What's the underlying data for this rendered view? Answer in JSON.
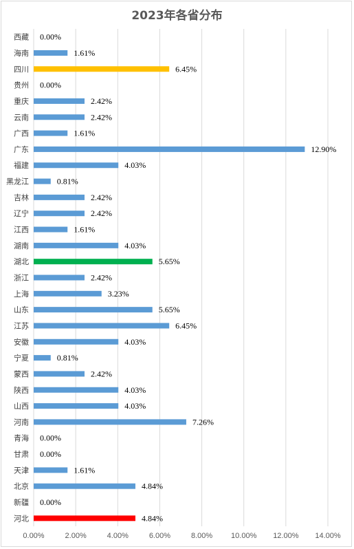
{
  "chart_data": {
    "type": "bar",
    "orientation": "horizontal",
    "title": "2023年各省分布",
    "categories": [
      "西藏",
      "海南",
      "四川",
      "贵州",
      "重庆",
      "云南",
      "广西",
      "广东",
      "福建",
      "黑龙江",
      "吉林",
      "辽宁",
      "江西",
      "湖南",
      "湖北",
      "浙江",
      "上海",
      "山东",
      "江苏",
      "安徽",
      "宁夏",
      "蒙西",
      "陕西",
      "山西",
      "河南",
      "青海",
      "甘肃",
      "天津",
      "北京",
      "新疆",
      "河北"
    ],
    "values": [
      0.0,
      1.61,
      6.45,
      0.0,
      2.42,
      2.42,
      1.61,
      12.9,
      4.03,
      0.81,
      2.42,
      2.42,
      1.61,
      4.03,
      5.65,
      2.42,
      3.23,
      5.65,
      6.45,
      4.03,
      0.81,
      2.42,
      4.03,
      4.03,
      7.26,
      0.0,
      0.0,
      1.61,
      4.84,
      0.0,
      4.84
    ],
    "value_labels": [
      "0.00%",
      "1.61%",
      "6.45%",
      "0.00%",
      "2.42%",
      "2.42%",
      "1.61%",
      "12.90%",
      "4.03%",
      "0.81%",
      "2.42%",
      "2.42%",
      "1.61%",
      "4.03%",
      "5.65%",
      "2.42%",
      "3.23%",
      "5.65%",
      "6.45%",
      "4.03%",
      "0.81%",
      "2.42%",
      "4.03%",
      "4.03%",
      "7.26%",
      "0.00%",
      "0.00%",
      "1.61%",
      "4.84%",
      "0.00%",
      "4.84%"
    ],
    "highlight_colors": {
      "四川": "#ffc000",
      "湖北": "#00b050",
      "河北": "#ff0000"
    },
    "default_color": "#5b9bd5",
    "xlim": [
      0,
      14
    ],
    "x_ticks": [
      0,
      2,
      4,
      6,
      8,
      10,
      12,
      14
    ],
    "x_tick_labels": [
      "0.00%",
      "2.00%",
      "4.00%",
      "6.00%",
      "8.00%",
      "10.00%",
      "12.00%",
      "14.00%"
    ],
    "grid": true
  }
}
